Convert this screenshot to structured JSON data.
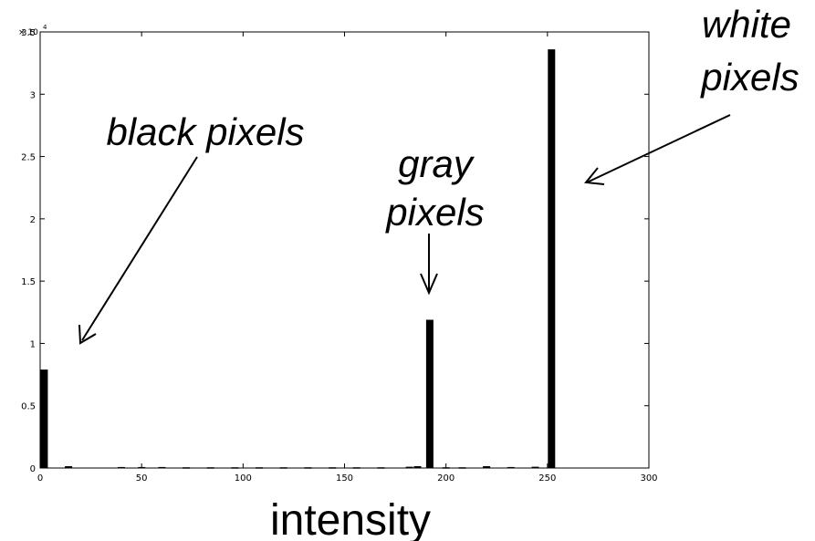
{
  "chart_data": {
    "type": "bar",
    "xlabel": "intensity",
    "ylabel": "",
    "title": "",
    "xlim": [
      0,
      300
    ],
    "ylim": [
      0,
      35000
    ],
    "x_ticks": [
      0,
      50,
      100,
      150,
      200,
      250,
      300
    ],
    "y_ticks": [
      0,
      0.5,
      1,
      1.5,
      2,
      2.5,
      3,
      3.5
    ],
    "y_tick_labels": [
      "0",
      "0.5",
      "1",
      "1.5",
      "2",
      "2.5",
      "3",
      "3.5"
    ],
    "y_exponent_label": "× 10",
    "y_exponent_power": "4",
    "x_tick_labels": [
      "0",
      "50",
      "100",
      "150",
      "200",
      "250",
      "300"
    ],
    "grid": false,
    "bars": [
      {
        "x": 2,
        "value": 7900
      },
      {
        "x": 14,
        "value": 150
      },
      {
        "x": 40,
        "value": 80
      },
      {
        "x": 50,
        "value": 80
      },
      {
        "x": 60,
        "value": 80
      },
      {
        "x": 72,
        "value": 60
      },
      {
        "x": 84,
        "value": 60
      },
      {
        "x": 96,
        "value": 60
      },
      {
        "x": 108,
        "value": 60
      },
      {
        "x": 120,
        "value": 60
      },
      {
        "x": 132,
        "value": 60
      },
      {
        "x": 144,
        "value": 60
      },
      {
        "x": 156,
        "value": 60
      },
      {
        "x": 168,
        "value": 60
      },
      {
        "x": 182,
        "value": 100
      },
      {
        "x": 186,
        "value": 150
      },
      {
        "x": 192,
        "value": 11900
      },
      {
        "x": 200,
        "value": 60
      },
      {
        "x": 208,
        "value": 60
      },
      {
        "x": 220,
        "value": 150
      },
      {
        "x": 232,
        "value": 80
      },
      {
        "x": 244,
        "value": 100
      },
      {
        "x": 252,
        "value": 33600
      }
    ],
    "annotations": [
      {
        "text": "black pixels"
      },
      {
        "text": "gray"
      },
      {
        "text": "pixels"
      },
      {
        "text": "white"
      },
      {
        "text": "pixels"
      }
    ]
  }
}
